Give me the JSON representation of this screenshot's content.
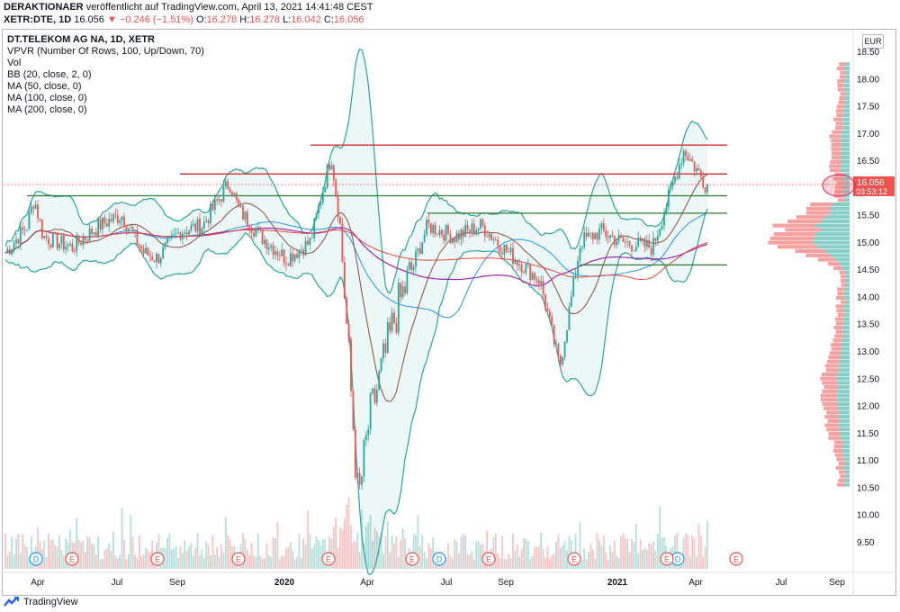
{
  "header": {
    "publisher": "DERAKTIONAER",
    "published_text": "veröffentlicht auf TradingView.com, April 13, 2021 14:41:48 CEST",
    "symbol": "XETR:DTE, 1D",
    "last": "16.056",
    "change": "−0.246 (−1.51%)",
    "o_label": "O:",
    "o_val": "16.278",
    "h_label": "H:",
    "h_val": "16.278",
    "l_label": "L:",
    "l_val": "16.042",
    "c_label": "C:",
    "c_val": "16.056"
  },
  "legend": {
    "title": "DT.TELEKOM AG NA, 1D, XETR",
    "items": [
      "VPVR (Number Of Rows, 100, Up/Down, 70)",
      "Vol",
      "BB (20, close, 2, 0)",
      "MA (50, close, 0)",
      "MA (100, close, 0)",
      "MA (200, close, 0)"
    ]
  },
  "currency": "EUR",
  "price_badge": {
    "price": "16.056",
    "countdown": "03:53:12"
  },
  "footer_logo": "TradingView",
  "colors": {
    "up": "#26a69a",
    "down": "#ef5350",
    "bb": "#26a69a",
    "bb_fill": "#e0f2f1",
    "ma50": "#8d4a3e",
    "ma100": "#2196f3",
    "ma200": "#9c27b0",
    "ma_extra": "#f44336",
    "resistance": "#d32f2f",
    "support": "#2e7d32",
    "vpvr_up": "#26a69a",
    "vpvr_down": "#ef5350"
  },
  "chart_data": {
    "type": "candlestick",
    "y_axis": {
      "ticks": [
        9.5,
        10.0,
        10.5,
        11.0,
        11.5,
        12.0,
        12.5,
        13.0,
        13.5,
        14.0,
        14.5,
        15.0,
        15.5,
        16.0,
        16.5,
        17.0,
        17.5,
        18.0,
        18.5
      ],
      "range": [
        9.2,
        18.7
      ]
    },
    "x_axis": {
      "labels": [
        "Apr",
        "Jul",
        "Sep",
        "2020",
        "Apr",
        "Jul",
        "Sep",
        "2021",
        "Apr",
        "Jul",
        "Sep"
      ],
      "bold": [
        "2020",
        "2021"
      ]
    },
    "horizontal_lines": [
      {
        "price": 16.78,
        "color": "resistance",
        "from": "2020-02",
        "to": "2021-05"
      },
      {
        "price": 16.25,
        "color": "resistance",
        "from": "2019-09",
        "to": "2021-05"
      },
      {
        "price": 15.85,
        "color": "support",
        "from": "2019-03",
        "to": "2021-05"
      },
      {
        "price": 15.53,
        "color": "support",
        "from": "2020-06",
        "to": "2021-05"
      },
      {
        "price": 14.58,
        "color": "support",
        "from": "2020-11",
        "to": "2021-05"
      }
    ],
    "close_path": [
      [
        "2019-02",
        14.8
      ],
      [
        "2019-03",
        15.3
      ],
      [
        "2019-03b",
        15.8
      ],
      [
        "2019-04",
        15.1
      ],
      [
        "2019-05",
        14.9
      ],
      [
        "2019-06",
        15.3
      ],
      [
        "2019-07",
        15.5
      ],
      [
        "2019-08",
        14.8
      ],
      [
        "2019-08b",
        14.7
      ],
      [
        "2019-09",
        15.2
      ],
      [
        "2019-10",
        15.3
      ],
      [
        "2019-11",
        16.1
      ],
      [
        "2019-11b",
        15.6
      ],
      [
        "2019-12",
        15.1
      ],
      [
        "2020-01",
        14.7
      ],
      [
        "2020-02",
        15.0
      ],
      [
        "2020-02b",
        16.6
      ],
      [
        "2020-03",
        15.3
      ],
      [
        "2020-03b",
        10.2
      ],
      [
        "2020-04",
        11.7
      ],
      [
        "2020-05",
        13.7
      ],
      [
        "2020-06",
        15.3
      ],
      [
        "2020-07",
        15.1
      ],
      [
        "2020-08",
        15.3
      ],
      [
        "2020-09",
        14.8
      ],
      [
        "2020-10",
        14.3
      ],
      [
        "2020-10b",
        12.7
      ],
      [
        "2020-11",
        15.0
      ],
      [
        "2020-12",
        15.2
      ],
      [
        "2021-01",
        15.0
      ],
      [
        "2021-02",
        14.9
      ],
      [
        "2021-03",
        16.7
      ],
      [
        "2021-04",
        16.06
      ]
    ],
    "volume_markers": {
      "D": [
        "2019-03",
        "2019-06",
        "2020-06",
        "2021-04"
      ],
      "E": [
        "2019-03",
        "2019-08",
        "2019-11",
        "2020-02",
        "2020-05",
        "2020-08",
        "2020-11",
        "2021-02",
        "2021-05"
      ]
    },
    "vpvr": {
      "rows": 100,
      "peak_price": 15.0
    }
  }
}
